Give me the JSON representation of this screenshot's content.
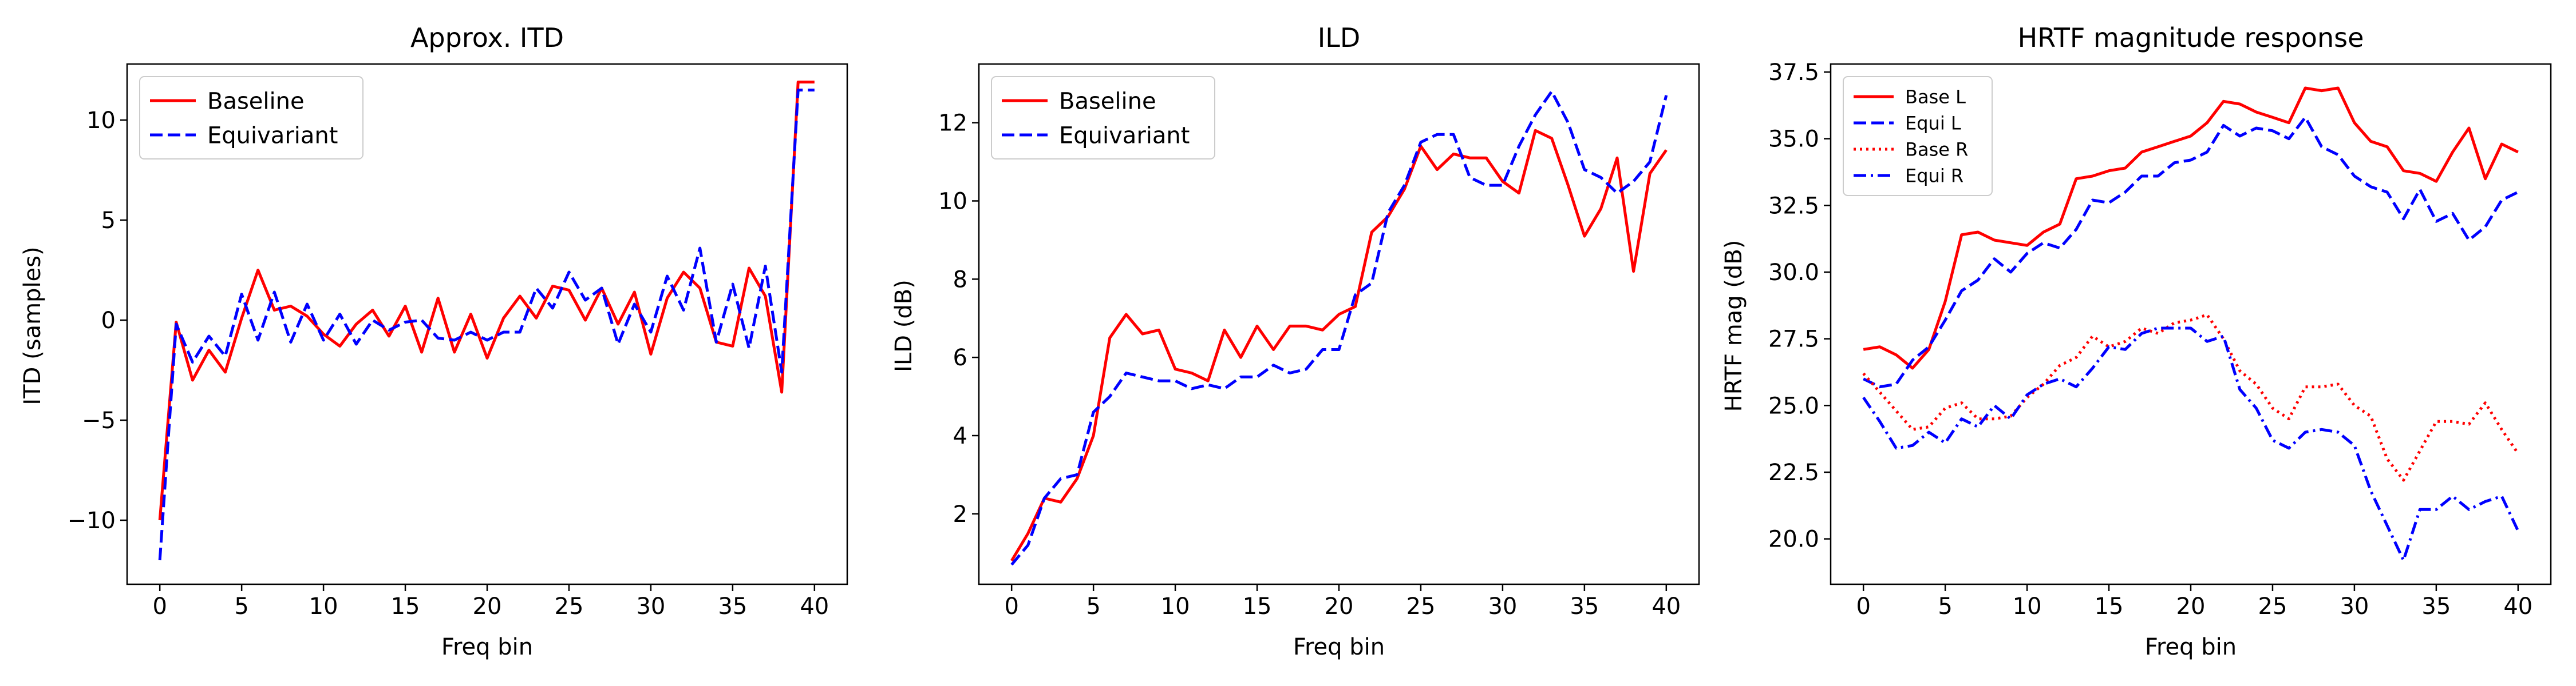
{
  "chart_data": [
    {
      "type": "line",
      "title": "Approx. ITD",
      "xlabel": "Freq bin",
      "ylabel": "ITD (samples)",
      "xlim": [
        -2,
        42
      ],
      "ylim": [
        -13.2,
        12.8
      ],
      "xticks": [
        0,
        5,
        10,
        15,
        20,
        25,
        30,
        35,
        40
      ],
      "yticks": [
        -10,
        -5,
        0,
        5,
        10
      ],
      "yticklabels": [
        "−10",
        "−5",
        "0",
        "5",
        "10"
      ],
      "grid": false,
      "legend_position": "upper left",
      "x": [
        0,
        1,
        2,
        3,
        4,
        5,
        6,
        7,
        8,
        9,
        10,
        11,
        12,
        13,
        14,
        15,
        16,
        17,
        18,
        19,
        20,
        21,
        22,
        23,
        24,
        25,
        26,
        27,
        28,
        29,
        30,
        31,
        32,
        33,
        34,
        35,
        36,
        37,
        38,
        39,
        40
      ],
      "series": [
        {
          "name": "Baseline",
          "color": "#ff0000",
          "style": "solid",
          "values": [
            -10.0,
            -0.1,
            -3.0,
            -1.5,
            -2.6,
            0.1,
            2.5,
            0.5,
            0.7,
            0.2,
            -0.7,
            -1.3,
            -0.2,
            0.5,
            -0.8,
            0.7,
            -1.6,
            1.1,
            -1.6,
            0.3,
            -1.9,
            0.1,
            1.2,
            0.1,
            1.7,
            1.5,
            0.0,
            1.6,
            -0.2,
            1.4,
            -1.7,
            1.1,
            2.4,
            1.6,
            -1.1,
            -1.3,
            2.6,
            1.2,
            -3.6,
            11.9,
            11.9
          ]
        },
        {
          "name": "Equivariant",
          "color": "#0000ff",
          "style": "dashed",
          "values": [
            -12.0,
            -0.2,
            -2.1,
            -0.8,
            -1.8,
            1.3,
            -1.0,
            1.4,
            -1.1,
            0.8,
            -1.0,
            0.3,
            -1.2,
            0.0,
            -0.5,
            -0.1,
            0.0,
            -0.9,
            -1.0,
            -0.6,
            -1.0,
            -0.6,
            -0.6,
            1.6,
            0.6,
            2.4,
            1.0,
            1.6,
            -1.2,
            0.8,
            -0.6,
            2.2,
            0.5,
            3.6,
            -1.1,
            1.8,
            -1.4,
            2.7,
            -2.6,
            11.5,
            11.5
          ]
        }
      ]
    },
    {
      "type": "line",
      "title": "ILD",
      "xlabel": "Freq bin",
      "ylabel": "ILD (dB)",
      "xlim": [
        -2,
        42
      ],
      "ylim": [
        0.2,
        13.5
      ],
      "xticks": [
        0,
        5,
        10,
        15,
        20,
        25,
        30,
        35,
        40
      ],
      "yticks": [
        2,
        4,
        6,
        8,
        10,
        12
      ],
      "yticklabels": [
        "2",
        "4",
        "6",
        "8",
        "10",
        "12"
      ],
      "grid": false,
      "legend_position": "upper left",
      "x": [
        0,
        1,
        2,
        3,
        4,
        5,
        6,
        7,
        8,
        9,
        10,
        11,
        12,
        13,
        14,
        15,
        16,
        17,
        18,
        19,
        20,
        21,
        22,
        23,
        24,
        25,
        26,
        27,
        28,
        29,
        30,
        31,
        32,
        33,
        34,
        35,
        36,
        37,
        38,
        39,
        40
      ],
      "series": [
        {
          "name": "Baseline",
          "color": "#ff0000",
          "style": "solid",
          "values": [
            0.8,
            1.5,
            2.4,
            2.3,
            2.9,
            4.0,
            6.5,
            7.1,
            6.6,
            6.7,
            5.7,
            5.6,
            5.4,
            6.7,
            6.0,
            6.8,
            6.2,
            6.8,
            6.8,
            6.7,
            7.1,
            7.3,
            9.2,
            9.6,
            10.3,
            11.4,
            10.8,
            11.2,
            11.1,
            11.1,
            10.5,
            10.2,
            11.8,
            11.6,
            10.4,
            9.1,
            9.8,
            11.1,
            8.2,
            10.7,
            11.3
          ]
        },
        {
          "name": "Equivariant",
          "color": "#0000ff",
          "style": "dashed",
          "values": [
            0.7,
            1.2,
            2.4,
            2.9,
            3.0,
            4.6,
            5.0,
            5.6,
            5.5,
            5.4,
            5.4,
            5.2,
            5.3,
            5.2,
            5.5,
            5.5,
            5.8,
            5.6,
            5.7,
            6.2,
            6.2,
            7.6,
            7.9,
            9.7,
            10.4,
            11.5,
            11.7,
            11.7,
            10.6,
            10.4,
            10.4,
            11.4,
            12.2,
            12.8,
            12.0,
            10.8,
            10.6,
            10.2,
            10.5,
            11.0,
            12.7
          ]
        }
      ]
    },
    {
      "type": "line",
      "title": "HRTF magnitude response",
      "xlabel": "Freq bin",
      "ylabel": "HRTF mag (dB)",
      "xlim": [
        -2,
        42
      ],
      "ylim": [
        18.3,
        37.8
      ],
      "xticks": [
        0,
        5,
        10,
        15,
        20,
        25,
        30,
        35,
        40
      ],
      "yticks": [
        20.0,
        22.5,
        25.0,
        27.5,
        30.0,
        32.5,
        35.0,
        37.5
      ],
      "yticklabels": [
        "20.0",
        "22.5",
        "25.0",
        "27.5",
        "30.0",
        "32.5",
        "35.0",
        "37.5"
      ],
      "grid": false,
      "legend_position": "upper left",
      "x": [
        0,
        1,
        2,
        3,
        4,
        5,
        6,
        7,
        8,
        9,
        10,
        11,
        12,
        13,
        14,
        15,
        16,
        17,
        18,
        19,
        20,
        21,
        22,
        23,
        24,
        25,
        26,
        27,
        28,
        29,
        30,
        31,
        32,
        33,
        34,
        35,
        36,
        37,
        38,
        39,
        40
      ],
      "series": [
        {
          "name": "Base L",
          "color": "#ff0000",
          "style": "solid",
          "values": [
            27.1,
            27.2,
            26.9,
            26.4,
            27.1,
            28.9,
            31.4,
            31.5,
            31.2,
            31.1,
            31.0,
            31.5,
            31.8,
            33.5,
            33.6,
            33.8,
            33.9,
            34.5,
            34.7,
            34.9,
            35.1,
            35.6,
            36.4,
            36.3,
            36.0,
            35.8,
            35.6,
            36.9,
            36.8,
            36.9,
            35.6,
            34.9,
            34.7,
            33.8,
            33.7,
            33.4,
            34.5,
            35.4,
            33.5,
            34.8,
            34.5
          ]
        },
        {
          "name": "Equi L",
          "color": "#0000ff",
          "style": "dashed",
          "values": [
            26.0,
            25.7,
            25.8,
            26.7,
            27.2,
            28.2,
            29.3,
            29.7,
            30.5,
            30.0,
            30.7,
            31.1,
            30.9,
            31.6,
            32.7,
            32.6,
            33.0,
            33.6,
            33.6,
            34.1,
            34.2,
            34.5,
            35.5,
            35.1,
            35.4,
            35.3,
            35.0,
            35.8,
            34.7,
            34.4,
            33.6,
            33.2,
            33.0,
            32.0,
            33.1,
            31.9,
            32.2,
            31.2,
            31.7,
            32.7,
            33.0
          ]
        },
        {
          "name": "Base R",
          "color": "#ff0000",
          "style": "dotted",
          "values": [
            26.2,
            25.5,
            24.8,
            24.1,
            24.2,
            24.9,
            25.1,
            24.5,
            24.5,
            24.6,
            25.3,
            25.8,
            26.5,
            26.8,
            27.6,
            27.2,
            27.4,
            27.9,
            27.7,
            28.1,
            28.2,
            28.4,
            27.5,
            26.3,
            25.8,
            24.9,
            24.5,
            25.7,
            25.7,
            25.8,
            25.0,
            24.6,
            23.0,
            22.2,
            23.3,
            24.4,
            24.4,
            24.3,
            25.1,
            24.1,
            23.2
          ]
        },
        {
          "name": "Equi R",
          "color": "#0000ff",
          "style": "dashdot",
          "values": [
            25.3,
            24.4,
            23.4,
            23.5,
            24.0,
            23.6,
            24.5,
            24.2,
            25.0,
            24.5,
            25.4,
            25.8,
            26.0,
            25.7,
            26.4,
            27.2,
            27.1,
            27.7,
            27.9,
            27.9,
            27.9,
            27.4,
            27.6,
            25.6,
            24.9,
            23.7,
            23.4,
            24.0,
            24.1,
            24.0,
            23.5,
            21.8,
            20.5,
            19.2,
            21.1,
            21.1,
            21.6,
            21.1,
            21.4,
            21.6,
            20.3
          ]
        }
      ]
    }
  ]
}
